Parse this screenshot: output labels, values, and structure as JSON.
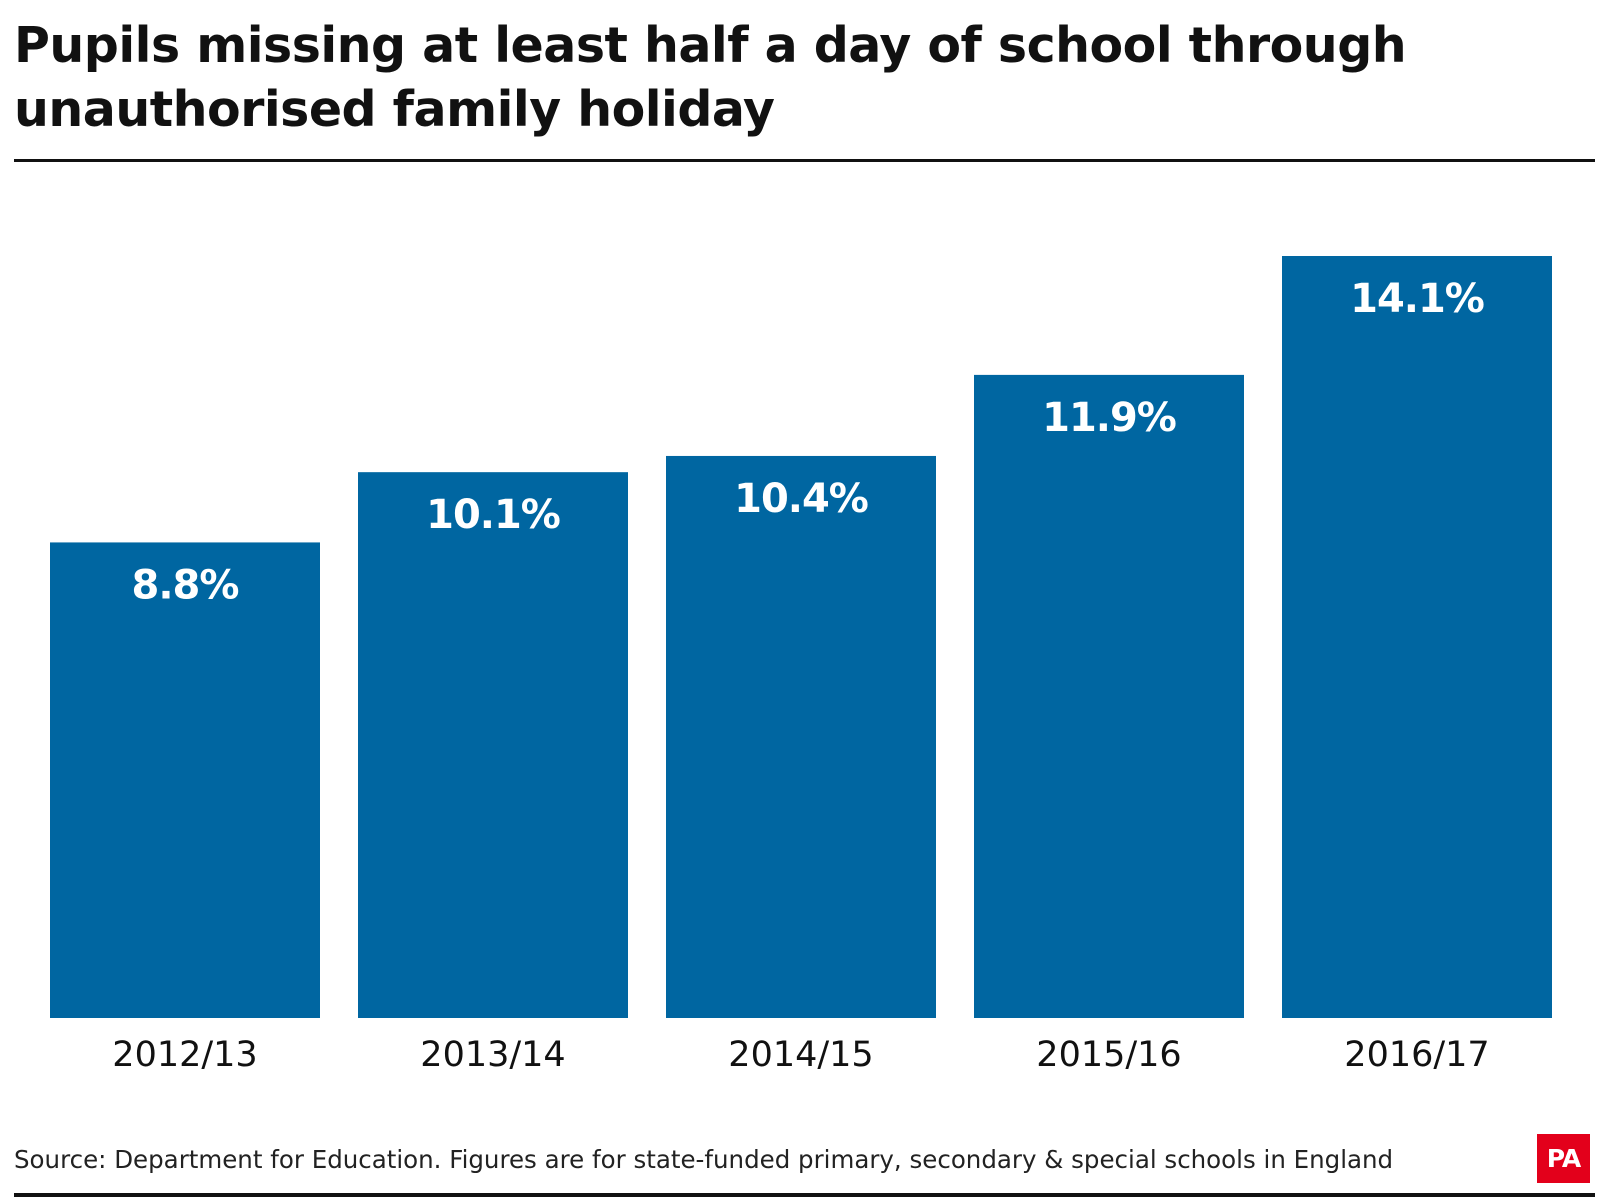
{
  "title": "Pupils missing at least half a day of school through unauthorised family holiday",
  "source": "Source: Department for Education. Figures are for state-funded primary, secondary & special schools in England",
  "logo_text": "PA",
  "colors": {
    "bar": "#0066a1",
    "logo": "#e3001b",
    "text": "#111111"
  },
  "chart_data": {
    "type": "bar",
    "categories": [
      "2012/13",
      "2013/14",
      "2014/15",
      "2015/16",
      "2016/17"
    ],
    "values": [
      8.8,
      10.1,
      10.4,
      11.9,
      14.1
    ],
    "value_labels": [
      "8.8%",
      "10.1%",
      "10.4%",
      "11.9%",
      "14.1%"
    ],
    "unit": "%",
    "ylim": [
      0,
      14.1
    ],
    "grid": false,
    "legend": "none",
    "title": "Pupils missing at least half a day of school through unauthorised family holiday",
    "xlabel": "",
    "ylabel": ""
  }
}
